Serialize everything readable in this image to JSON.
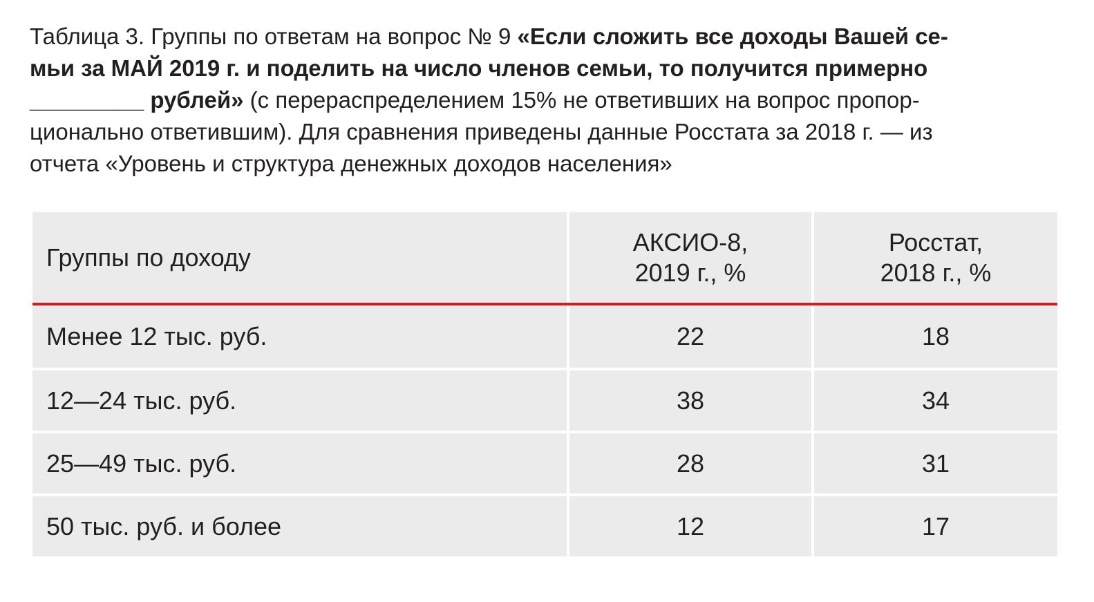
{
  "caption": {
    "line1_normal": "Таблица 3. Группы по ответам на вопрос № 9 ",
    "line1_bold": "«Если сложить все доходы Вашей се-",
    "line2_bold": "мьи за МАЙ 2019 г. и поделить на число членов семьи, то получится примерно",
    "line3_bold": "_________ рублей»",
    "line3_normal": " (с перераспределением 15% не ответивших на вопрос пропор-",
    "line4": "ционально ответившим). Для сравнения приведены данные Росстата за 2018 г. — из",
    "line5": "отчета «Уровень и структура денежных доходов населения»"
  },
  "table": {
    "headers": {
      "group": "Группы по доходу",
      "aksio_line1": "АКСИО-8,",
      "aksio_line2": "2019 г., %",
      "rosstat_line1": "Росстат,",
      "rosstat_line2": "2018 г., %"
    },
    "rows": [
      {
        "group": "Менее 12 тыс. руб.",
        "aksio": "22",
        "rosstat": "18"
      },
      {
        "group": "12—24 тыс. руб.",
        "aksio": "38",
        "rosstat": "34"
      },
      {
        "group": "25—49 тыс. руб.",
        "aksio": "28",
        "rosstat": "31"
      },
      {
        "group": "50 тыс. руб. и более",
        "aksio": "12",
        "rosstat": "17"
      }
    ]
  },
  "colors": {
    "accent_rule": "#d71920",
    "cell_background": "#ebebeb"
  }
}
